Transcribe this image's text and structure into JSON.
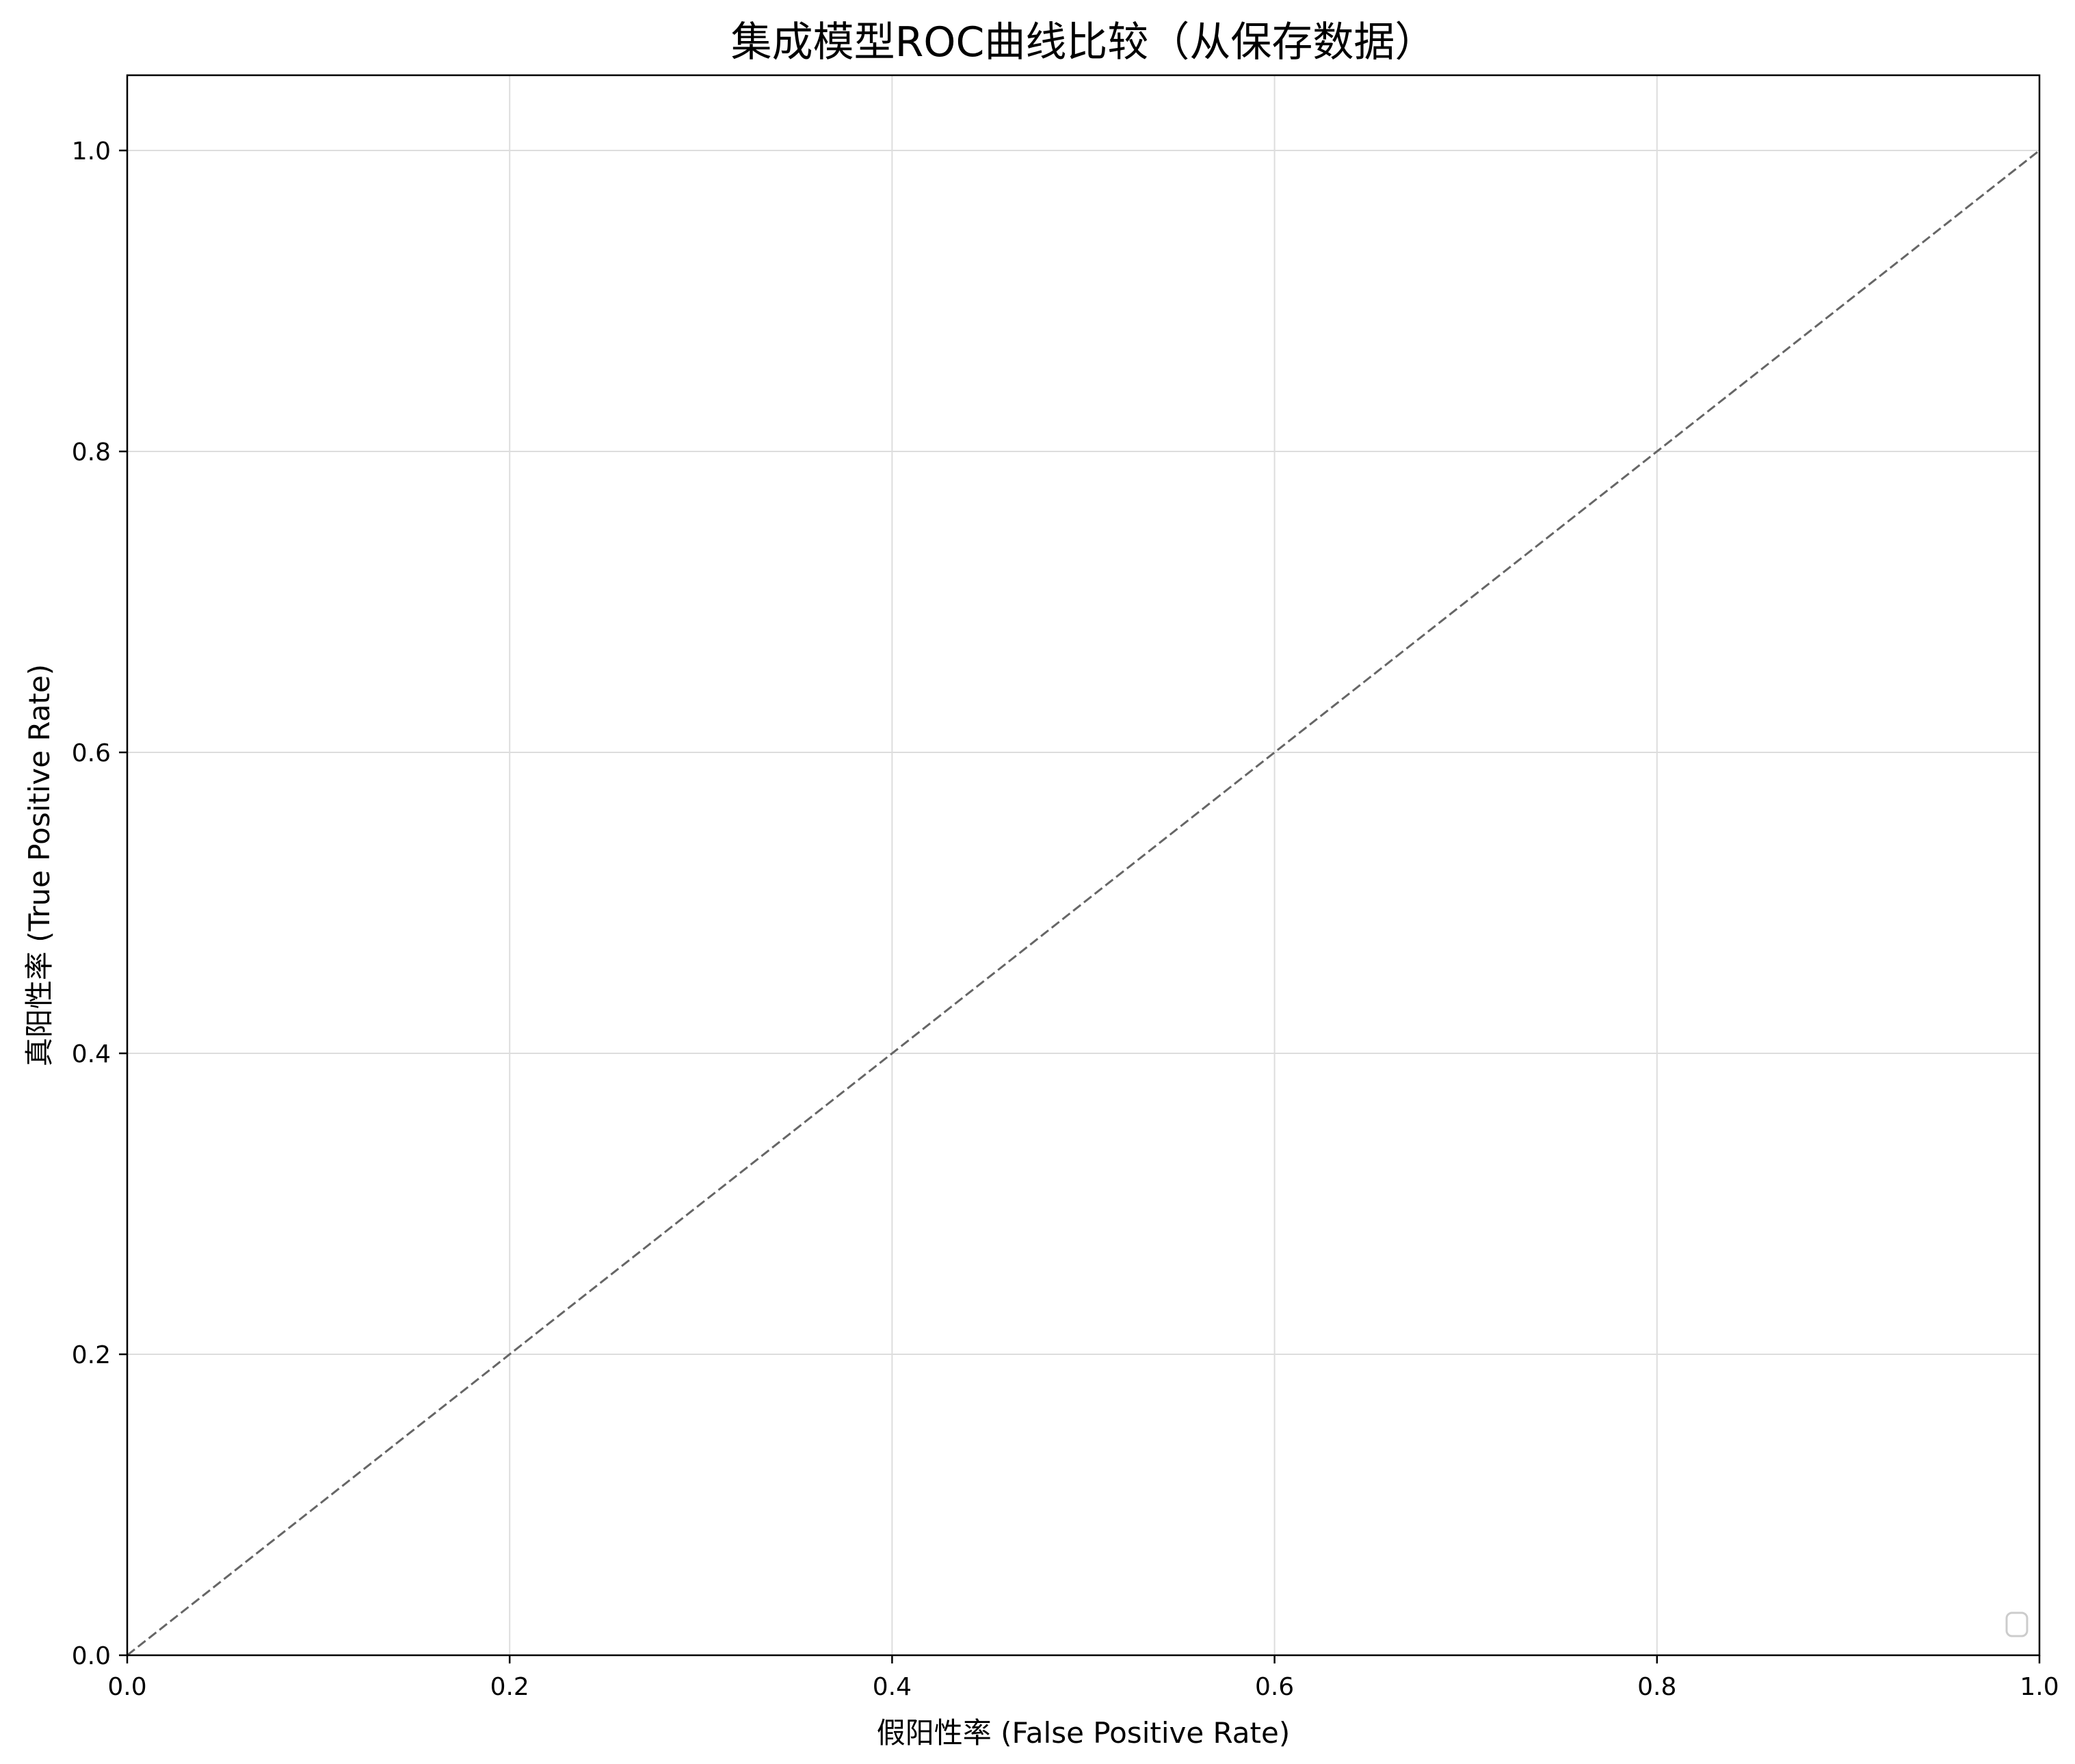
{
  "chart_data": {
    "type": "line",
    "title": "集成模型ROC曲线比较（从保存数据）",
    "xlabel": "假阳性率 (False Positive Rate)",
    "ylabel": "真阳性率 (True Positive Rate)",
    "xlim": [
      0.0,
      1.0
    ],
    "ylim": [
      0.0,
      1.05
    ],
    "xticks": [
      0.0,
      0.2,
      0.4,
      0.6,
      0.8,
      1.0
    ],
    "yticks": [
      0.0,
      0.2,
      0.4,
      0.6,
      0.8,
      1.0
    ],
    "xtick_labels": [
      "0.0",
      "0.2",
      "0.4",
      "0.6",
      "0.8",
      "1.0"
    ],
    "ytick_labels": [
      "0.0",
      "0.2",
      "0.4",
      "0.6",
      "0.8",
      "1.0"
    ],
    "grid": true,
    "legend_position": "lower-right",
    "legend_entries": [],
    "series": [
      {
        "style": "dashed",
        "color": "#666666",
        "x": [
          0.0,
          1.0
        ],
        "y": [
          0.0,
          1.0
        ]
      }
    ]
  }
}
